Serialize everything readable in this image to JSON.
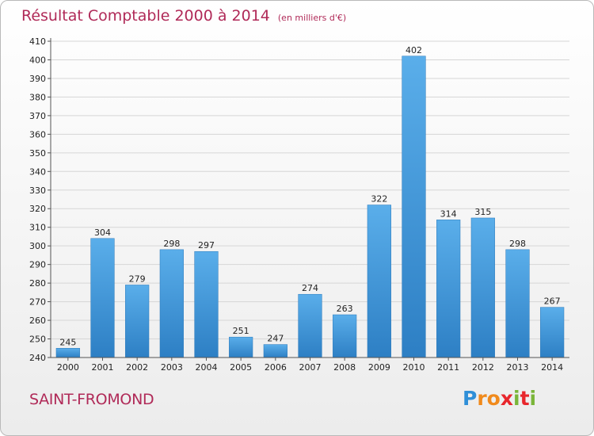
{
  "chart_data": {
    "type": "bar",
    "title": "Résultat Comptable 2000 à 2014",
    "unit": "(en milliers d'€)",
    "categories": [
      "2000",
      "2001",
      "2002",
      "2003",
      "2004",
      "2005",
      "2006",
      "2007",
      "2008",
      "2009",
      "2010",
      "2011",
      "2012",
      "2013",
      "2014"
    ],
    "values": [
      245,
      304,
      279,
      298,
      297,
      251,
      247,
      274,
      263,
      322,
      402,
      314,
      315,
      298,
      267
    ],
    "ylim": [
      240,
      410
    ],
    "yticks": [
      240,
      250,
      260,
      270,
      280,
      290,
      300,
      310,
      320,
      330,
      340,
      350,
      360,
      370,
      380,
      390,
      400,
      410
    ],
    "grid": true,
    "bar_color": "#4a9ee0"
  },
  "footer": {
    "city": "SAINT-FROMOND",
    "logo_letters": [
      "P",
      "r",
      "o",
      "x",
      "i",
      "t",
      "i"
    ],
    "logo_colors": [
      "#2f8fd8",
      "#f08a1c",
      "#f08a1c",
      "#e8262c",
      "#7ab539",
      "#e8262c",
      "#7ab539"
    ]
  }
}
